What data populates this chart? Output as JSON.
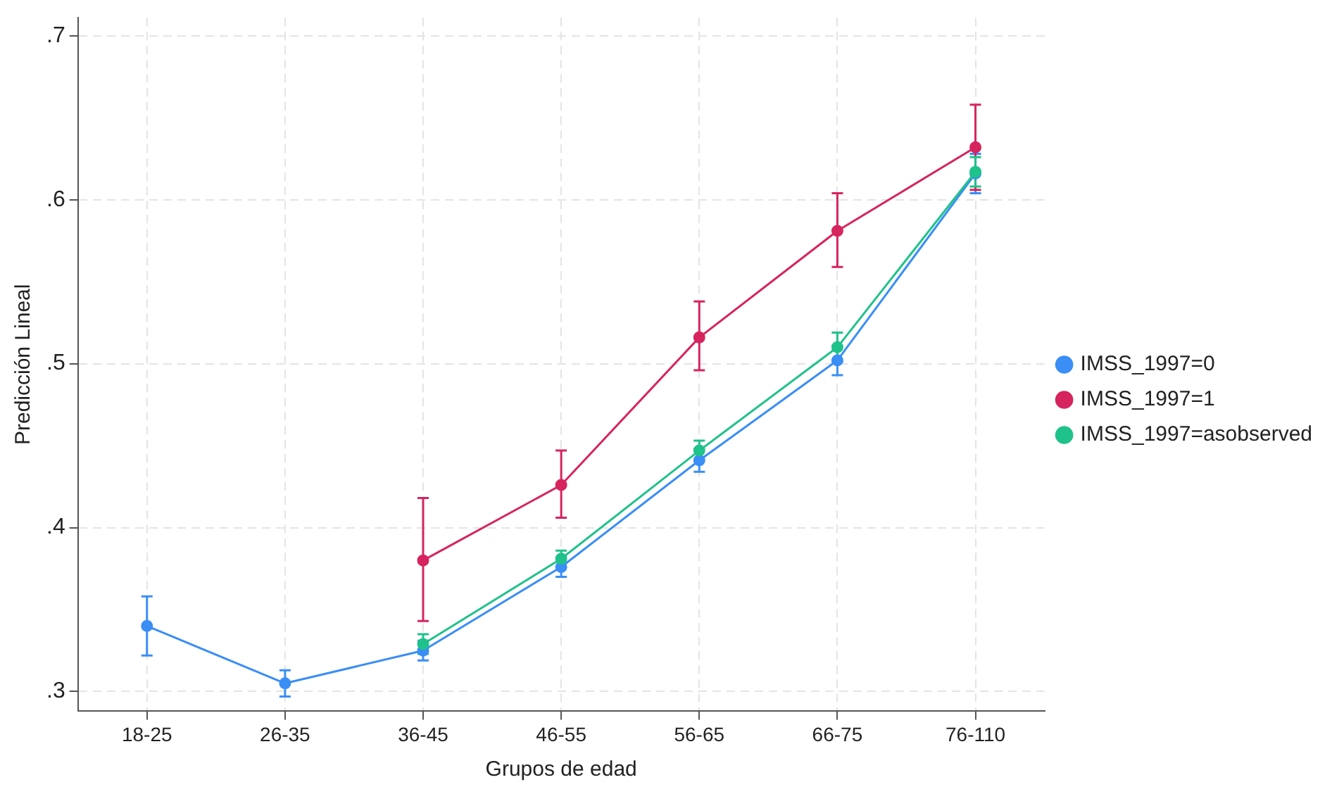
{
  "chart_data": {
    "type": "line",
    "xlabel": "Grupos de edad",
    "ylabel": "Predicción Lineal",
    "categories": [
      "18-25",
      "26-35",
      "36-45",
      "46-55",
      "56-65",
      "66-75",
      "76-110"
    ],
    "series": [
      {
        "name": "IMSS_1997=0",
        "color": "#3a8ef6",
        "values": [
          0.34,
          0.305,
          0.325,
          0.376,
          0.441,
          0.502,
          0.616
        ],
        "errors": [
          0.018,
          0.008,
          0.006,
          0.006,
          0.007,
          0.009,
          0.012
        ]
      },
      {
        "name": "IMSS_1997=1",
        "color": "#d6245f",
        "values": [
          null,
          null,
          0.38,
          0.426,
          0.516,
          0.581,
          0.632
        ],
        "errors": [
          null,
          null,
          [
            0.343,
            0.418
          ],
          [
            0.406,
            0.447
          ],
          [
            0.496,
            0.538
          ],
          [
            0.559,
            0.604
          ],
          [
            0.606,
            0.658
          ]
        ]
      },
      {
        "name": "IMSS_1997=asobserved",
        "color": "#1fc28a",
        "values": [
          null,
          null,
          0.329,
          0.381,
          0.447,
          0.51,
          0.617
        ],
        "errors": [
          null,
          null,
          0.006,
          0.005,
          0.006,
          0.009,
          0.009
        ]
      }
    ],
    "ylim": [
      0.288,
      0.711
    ],
    "yticks": [
      {
        "value": 0.3,
        "label": ".3"
      },
      {
        "value": 0.4,
        "label": ".4"
      },
      {
        "value": 0.5,
        "label": ".5"
      },
      {
        "value": 0.6,
        "label": ".6"
      },
      {
        "value": 0.7,
        "label": ".7"
      }
    ],
    "grid": true,
    "legend": "right",
    "marker": "circle",
    "line_style": "solid"
  }
}
